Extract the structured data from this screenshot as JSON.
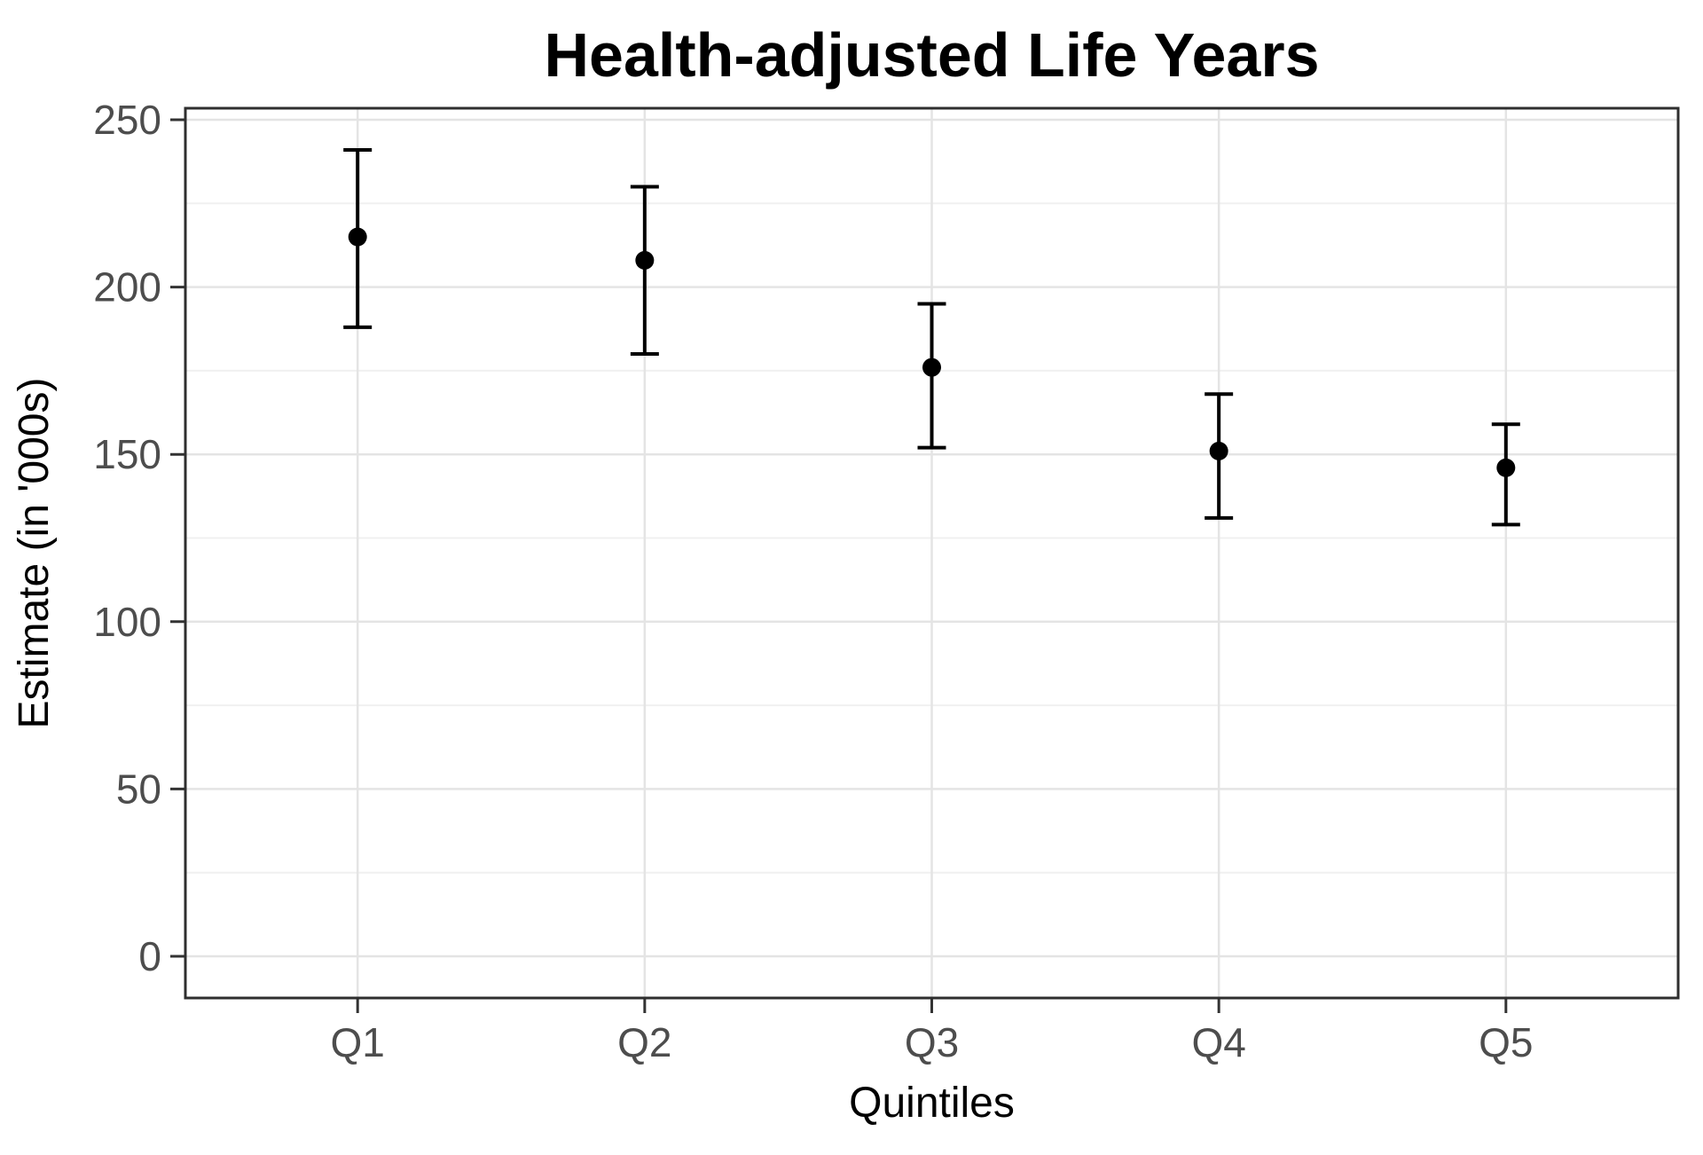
{
  "chart_data": {
    "type": "scatter",
    "subtype": "point-estimate-with-error-bars",
    "title": "Health-adjusted Life Years",
    "xlabel": "Quintiles",
    "ylabel": "Estimate (in '000s)",
    "categories": [
      "Q1",
      "Q2",
      "Q3",
      "Q4",
      "Q5"
    ],
    "series": [
      {
        "name": "Estimate",
        "values": [
          215,
          208,
          176,
          151,
          146
        ],
        "ci_lower": [
          188,
          180,
          152,
          131,
          129
        ],
        "ci_upper": [
          241,
          230,
          195,
          168,
          159
        ]
      }
    ],
    "yticks": [
      0,
      50,
      100,
      150,
      200,
      250
    ],
    "ytick_labels": [
      "0",
      "50",
      "100",
      "150",
      "200",
      "250"
    ],
    "ylim": [
      -12.5,
      253.5
    ],
    "grid": "horizontal major + minor, vertical major at each category",
    "legend": "none",
    "colors": {
      "background": "#ffffff",
      "panel_background": "#ffffff",
      "panel_border": "#2f2f2f",
      "grid_major": "#e4e4e4",
      "grid_minor": "#f0f0f0",
      "tick_mark": "#333333",
      "tick_label": "#4d4d4d",
      "axis_title": "#000000",
      "title": "#000000",
      "point": "#000000",
      "error_bar": "#000000"
    }
  }
}
